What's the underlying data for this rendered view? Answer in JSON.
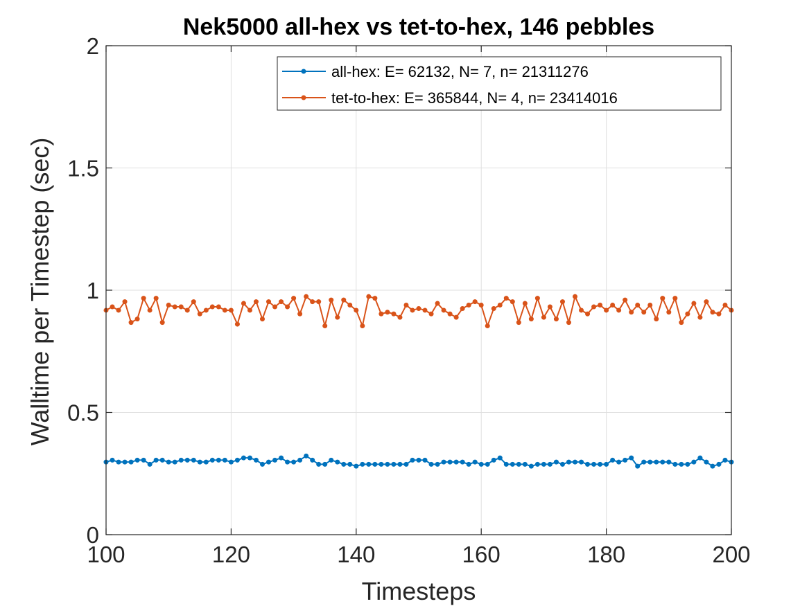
{
  "chart_data": {
    "type": "line",
    "title": "Nek5000 all-hex vs tet-to-hex, 146 pebbles",
    "xlabel": "Timesteps",
    "ylabel": "Walltime  per Timestep (sec)",
    "xlim": [
      100,
      200
    ],
    "ylim": [
      0,
      2
    ],
    "xticks": [
      100,
      120,
      140,
      160,
      180,
      200
    ],
    "yticks": [
      0,
      0.5,
      1,
      1.5,
      2
    ],
    "ytick_labels": [
      "0",
      "0.5",
      "1",
      "1.5",
      "2"
    ],
    "grid": true,
    "legend_position": "top-right",
    "x": [
      100,
      101,
      102,
      103,
      104,
      105,
      106,
      107,
      108,
      109,
      110,
      111,
      112,
      113,
      114,
      115,
      116,
      117,
      118,
      119,
      120,
      121,
      122,
      123,
      124,
      125,
      126,
      127,
      128,
      129,
      130,
      131,
      132,
      133,
      134,
      135,
      136,
      137,
      138,
      139,
      140,
      141,
      142,
      143,
      144,
      145,
      146,
      147,
      148,
      149,
      150,
      151,
      152,
      153,
      154,
      155,
      156,
      157,
      158,
      159,
      160,
      161,
      162,
      163,
      164,
      165,
      166,
      167,
      168,
      169,
      170,
      171,
      172,
      173,
      174,
      175,
      176,
      177,
      178,
      179,
      180,
      181,
      182,
      183,
      184,
      185,
      186,
      187,
      188,
      189,
      190,
      191,
      192,
      193,
      194,
      195,
      196,
      197,
      198,
      199,
      200
    ],
    "series": [
      {
        "name": "all-hex: E= 62132, N= 7, n= 21311276",
        "color": "#0072BD",
        "values": [
          0.297,
          0.305,
          0.297,
          0.297,
          0.297,
          0.305,
          0.305,
          0.288,
          0.305,
          0.305,
          0.297,
          0.297,
          0.305,
          0.305,
          0.305,
          0.297,
          0.297,
          0.305,
          0.305,
          0.305,
          0.297,
          0.305,
          0.314,
          0.314,
          0.305,
          0.288,
          0.297,
          0.305,
          0.314,
          0.297,
          0.297,
          0.305,
          0.322,
          0.305,
          0.288,
          0.288,
          0.305,
          0.297,
          0.288,
          0.288,
          0.28,
          0.288,
          0.288,
          0.288,
          0.288,
          0.288,
          0.288,
          0.288,
          0.288,
          0.305,
          0.305,
          0.305,
          0.288,
          0.288,
          0.297,
          0.297,
          0.297,
          0.297,
          0.288,
          0.297,
          0.288,
          0.288,
          0.305,
          0.314,
          0.288,
          0.288,
          0.288,
          0.288,
          0.28,
          0.288,
          0.288,
          0.288,
          0.297,
          0.288,
          0.297,
          0.297,
          0.297,
          0.288,
          0.288,
          0.288,
          0.288,
          0.305,
          0.297,
          0.305,
          0.314,
          0.28,
          0.297,
          0.297,
          0.297,
          0.297,
          0.297,
          0.288,
          0.288,
          0.288,
          0.297,
          0.314,
          0.297,
          0.28,
          0.288,
          0.305,
          0.297
        ]
      },
      {
        "name": "tet-to-hex: E= 365844, N= 4, n= 23414016",
        "color": "#D95319",
        "values": [
          0.918,
          0.932,
          0.918,
          0.953,
          0.868,
          0.882,
          0.967,
          0.918,
          0.967,
          0.868,
          0.939,
          0.932,
          0.932,
          0.918,
          0.953,
          0.903,
          0.918,
          0.932,
          0.932,
          0.918,
          0.918,
          0.861,
          0.946,
          0.918,
          0.953,
          0.882,
          0.953,
          0.932,
          0.953,
          0.932,
          0.967,
          0.903,
          0.974,
          0.953,
          0.953,
          0.854,
          0.96,
          0.889,
          0.96,
          0.939,
          0.918,
          0.854,
          0.974,
          0.967,
          0.903,
          0.91,
          0.903,
          0.889,
          0.939,
          0.918,
          0.925,
          0.918,
          0.903,
          0.946,
          0.918,
          0.903,
          0.889,
          0.925,
          0.939,
          0.953,
          0.939,
          0.854,
          0.925,
          0.939,
          0.967,
          0.953,
          0.868,
          0.946,
          0.882,
          0.967,
          0.889,
          0.932,
          0.882,
          0.953,
          0.868,
          0.974,
          0.918,
          0.903,
          0.932,
          0.939,
          0.918,
          0.939,
          0.918,
          0.96,
          0.91,
          0.939,
          0.91,
          0.939,
          0.882,
          0.967,
          0.91,
          0.967,
          0.868,
          0.903,
          0.946,
          0.889,
          0.953,
          0.91,
          0.903,
          0.939,
          0.918
        ]
      }
    ]
  }
}
